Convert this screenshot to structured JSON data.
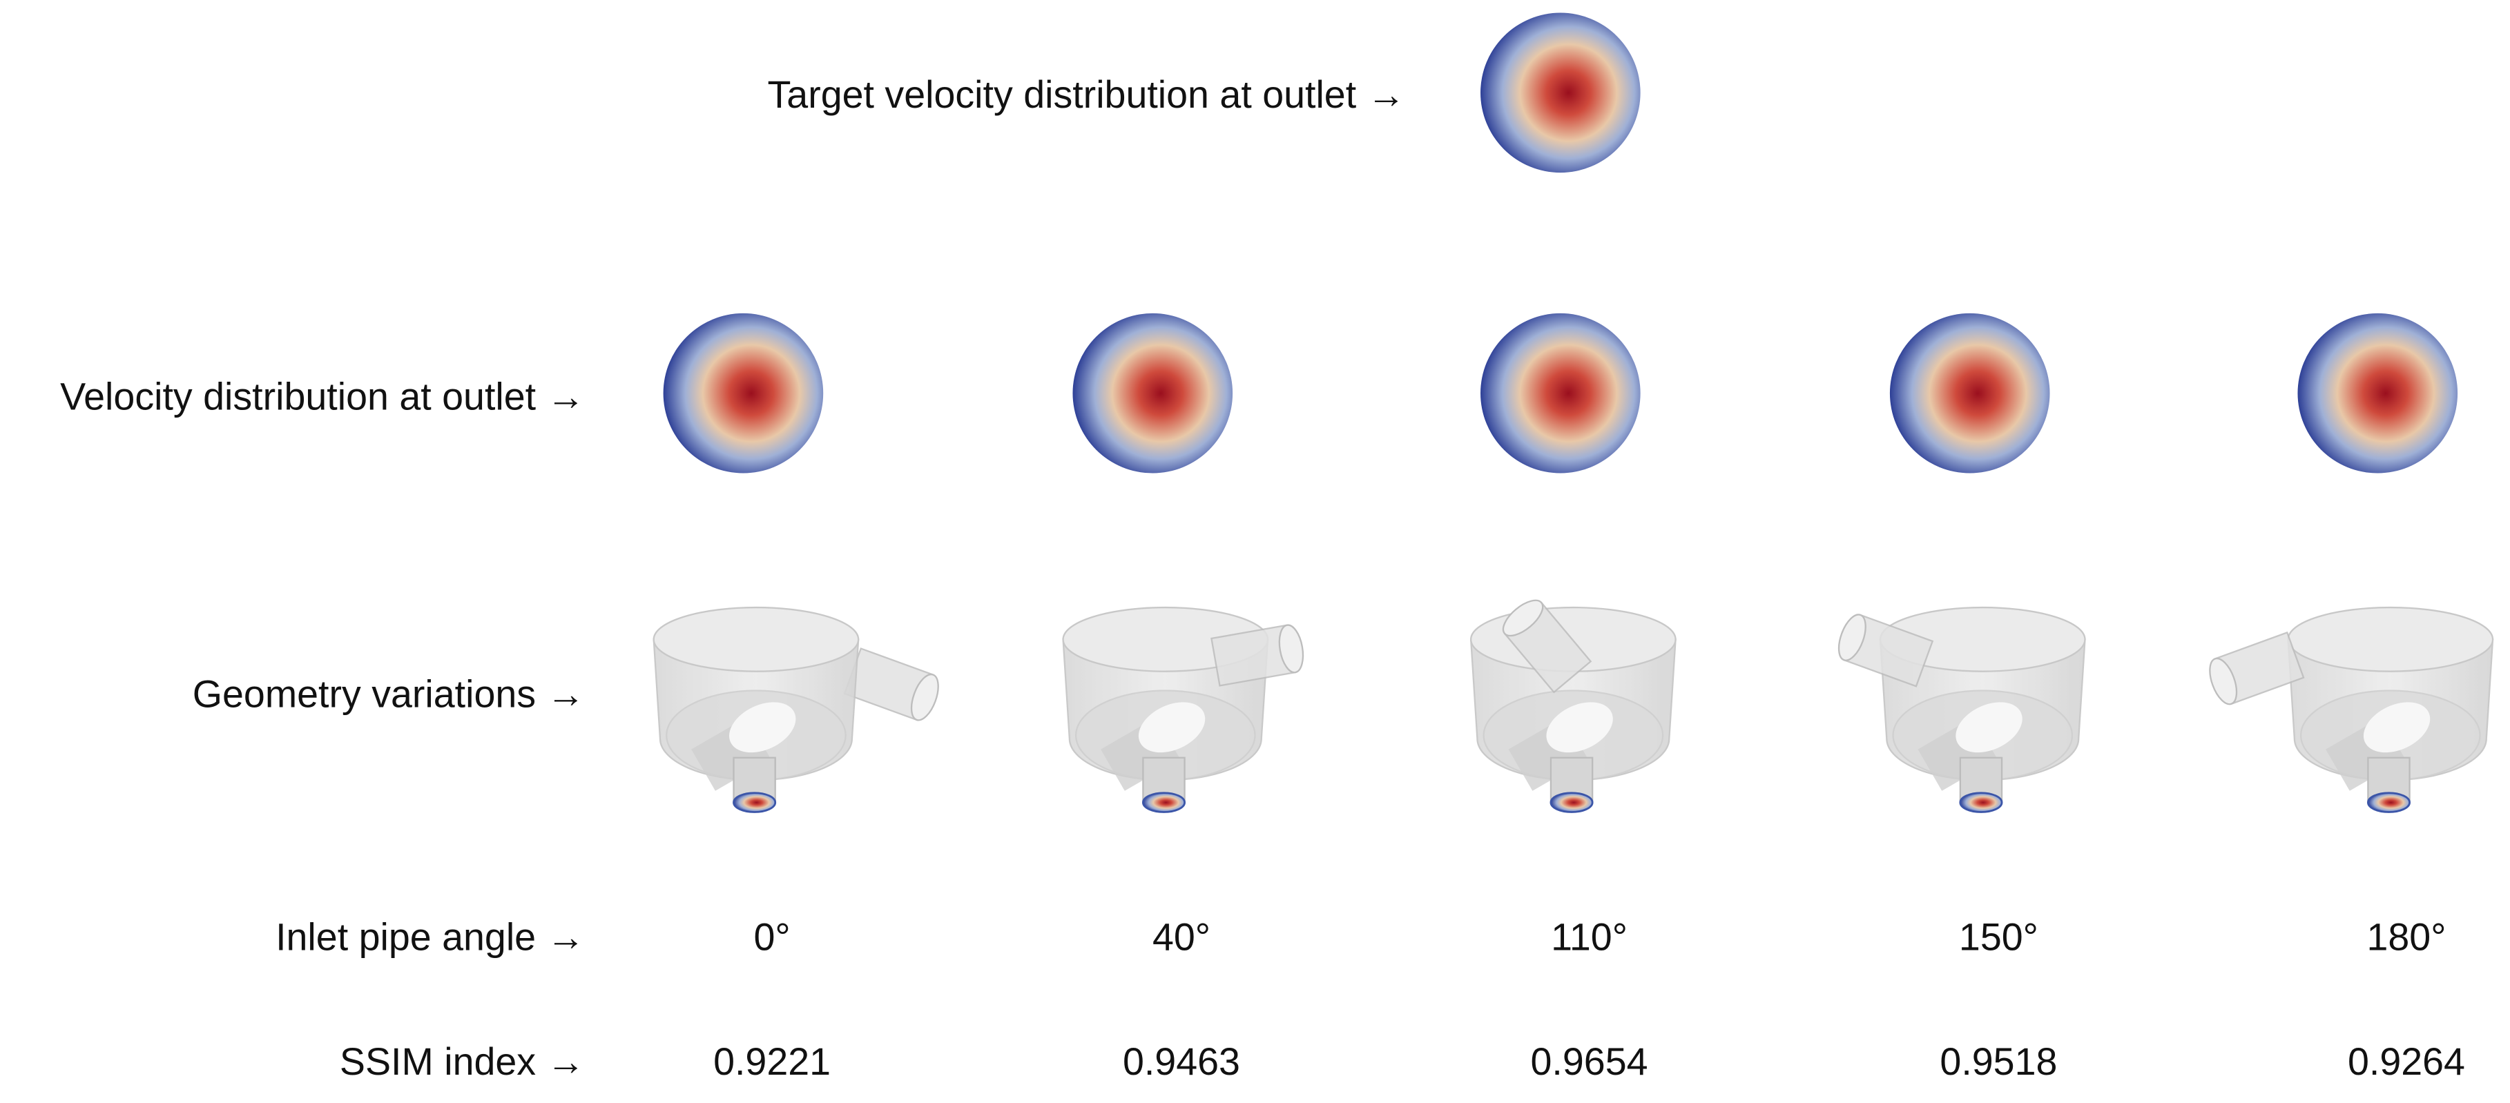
{
  "target_label": "Target velocity distribution at outlet →",
  "rows": {
    "velocity": "Velocity distribution at outlet →",
    "geometry": "Geometry variations →",
    "angle": "Inlet pipe angle →",
    "ssim": "SSIM index →"
  },
  "cases": [
    {
      "angle": "0°",
      "ssim": "0.9221"
    },
    {
      "angle": "40°",
      "ssim": "0.9463"
    },
    {
      "angle": "110°",
      "ssim": "0.9654"
    },
    {
      "angle": "150°",
      "ssim": "0.9518"
    },
    {
      "angle": "180°",
      "ssim": "0.9264"
    }
  ]
}
